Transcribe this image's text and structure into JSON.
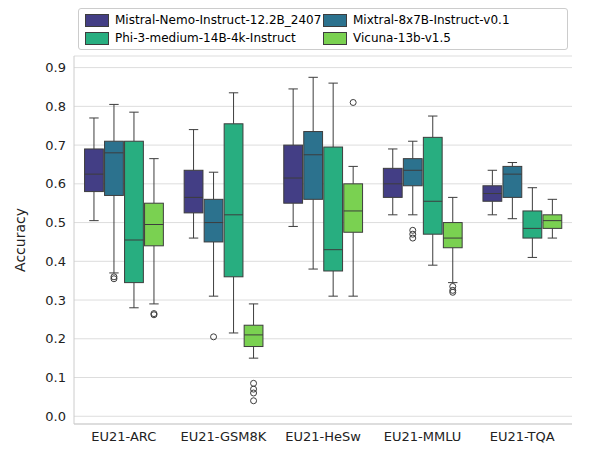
{
  "chart_data": {
    "type": "box",
    "y_label": "Accuracy",
    "categories": [
      "EU21-ARC",
      "EU21-GSM8K",
      "EU21-HeSw",
      "EU21-MMLU",
      "EU21-TQA"
    ],
    "ylim": [
      -0.02,
      0.93
    ],
    "yticks": [
      {
        "value": 0,
        "label": "0.0"
      },
      0.1,
      0.2,
      0.3,
      0.4,
      0.5,
      0.6,
      0.7,
      0.8,
      0.9
    ],
    "grid": true,
    "legend": "upper center",
    "series": [
      {
        "name": "Mistral-Nemo-Instruct-12.2B_2407",
        "color": "#433e85",
        "boxes": [
          {
            "min": 0.505,
            "q1": 0.58,
            "median": 0.625,
            "q3": 0.69,
            "max": 0.77,
            "outliers": []
          },
          {
            "min": 0.46,
            "q1": 0.525,
            "median": 0.565,
            "q3": 0.635,
            "max": 0.74,
            "outliers": []
          },
          {
            "min": 0.49,
            "q1": 0.55,
            "median": 0.615,
            "q3": 0.7,
            "max": 0.845,
            "outliers": []
          },
          {
            "min": 0.52,
            "q1": 0.565,
            "median": 0.6,
            "q3": 0.64,
            "max": 0.69,
            "outliers": []
          },
          {
            "min": 0.52,
            "q1": 0.555,
            "median": 0.575,
            "q3": 0.595,
            "max": 0.635,
            "outliers": []
          }
        ]
      },
      {
        "name": "Mixtral-8x7B-Instruct-v0.1",
        "color": "#2c728e",
        "boxes": [
          {
            "min": 0.37,
            "q1": 0.57,
            "median": 0.68,
            "q3": 0.71,
            "max": 0.805,
            "outliers": [
              0.36,
              0.355
            ]
          },
          {
            "min": 0.31,
            "q1": 0.45,
            "median": 0.5,
            "q3": 0.56,
            "max": 0.63,
            "outliers": [
              0.205
            ]
          },
          {
            "min": 0.38,
            "q1": 0.56,
            "median": 0.675,
            "q3": 0.735,
            "max": 0.875,
            "outliers": []
          },
          {
            "min": 0.52,
            "q1": 0.595,
            "median": 0.635,
            "q3": 0.665,
            "max": 0.71,
            "outliers": [
              0.48,
              0.47,
              0.46
            ]
          },
          {
            "min": 0.51,
            "q1": 0.565,
            "median": 0.625,
            "q3": 0.645,
            "max": 0.655,
            "outliers": []
          }
        ]
      },
      {
        "name": "Phi-3-medium-14B-4k-Instruct",
        "color": "#28ae80",
        "boxes": [
          {
            "min": 0.28,
            "q1": 0.345,
            "median": 0.455,
            "q3": 0.71,
            "max": 0.785,
            "outliers": []
          },
          {
            "min": 0.215,
            "q1": 0.36,
            "median": 0.52,
            "q3": 0.755,
            "max": 0.835,
            "outliers": []
          },
          {
            "min": 0.31,
            "q1": 0.375,
            "median": 0.43,
            "q3": 0.695,
            "max": 0.86,
            "outliers": []
          },
          {
            "min": 0.39,
            "q1": 0.47,
            "median": 0.555,
            "q3": 0.72,
            "max": 0.775,
            "outliers": []
          },
          {
            "min": 0.41,
            "q1": 0.46,
            "median": 0.485,
            "q3": 0.53,
            "max": 0.59,
            "outliers": []
          }
        ]
      },
      {
        "name": "Vicuna-13b-v1.5",
        "color": "#7ad151",
        "boxes": [
          {
            "min": 0.29,
            "q1": 0.44,
            "median": 0.495,
            "q3": 0.55,
            "max": 0.665,
            "outliers": [
              0.265,
              0.262
            ]
          },
          {
            "min": 0.15,
            "q1": 0.18,
            "median": 0.21,
            "q3": 0.235,
            "max": 0.29,
            "outliers": [
              0.085,
              0.07,
              0.06,
              0.04
            ]
          },
          {
            "min": 0.31,
            "q1": 0.475,
            "median": 0.53,
            "q3": 0.6,
            "max": 0.645,
            "outliers": [
              0.81
            ]
          },
          {
            "min": 0.345,
            "q1": 0.435,
            "median": 0.46,
            "q3": 0.5,
            "max": 0.565,
            "outliers": [
              0.335,
              0.325,
              0.32
            ]
          },
          {
            "min": 0.46,
            "q1": 0.485,
            "median": 0.505,
            "q3": 0.52,
            "max": 0.56,
            "outliers": []
          }
        ]
      }
    ]
  }
}
